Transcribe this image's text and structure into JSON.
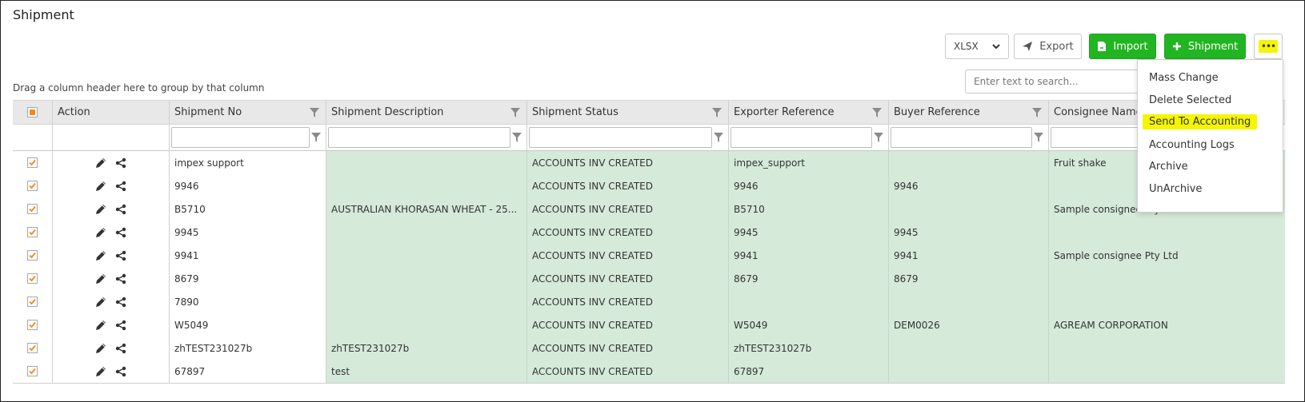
{
  "page_title": "Shipment",
  "toolbar": {
    "format_value": "XLSX",
    "export_label": "Export",
    "import_label": "Import",
    "shipment_label": "Shipment",
    "more_label": "•••"
  },
  "group_hint": "Drag a column header here to group by that column",
  "search": {
    "placeholder": "Enter text to search..."
  },
  "columns": [
    "Action",
    "Shipment No",
    "Shipment Description",
    "Shipment Status",
    "Exporter Reference",
    "Buyer Reference",
    "Consignee Name"
  ],
  "rows": [
    {
      "shipment_no": "impex support",
      "description": "",
      "status": "ACCOUNTS INV CREATED",
      "exporter_ref": "impex_support",
      "buyer_ref": "",
      "consignee": "Fruit shake"
    },
    {
      "shipment_no": "9946",
      "description": "",
      "status": "ACCOUNTS INV CREATED",
      "exporter_ref": "9946",
      "buyer_ref": "9946",
      "consignee": ""
    },
    {
      "shipment_no": "B5710",
      "description": "AUSTRALIAN KHORASAN WHEAT - 25...",
      "status": "ACCOUNTS INV CREATED",
      "exporter_ref": "B5710",
      "buyer_ref": "",
      "consignee": "Sample consignee Pty Ltd"
    },
    {
      "shipment_no": "9945",
      "description": "",
      "status": "ACCOUNTS INV CREATED",
      "exporter_ref": "9945",
      "buyer_ref": "9945",
      "consignee": ""
    },
    {
      "shipment_no": "9941",
      "description": "",
      "status": "ACCOUNTS INV CREATED",
      "exporter_ref": "9941",
      "buyer_ref": "9941",
      "consignee": "Sample consignee Pty Ltd"
    },
    {
      "shipment_no": "8679",
      "description": "",
      "status": "ACCOUNTS INV CREATED",
      "exporter_ref": "8679",
      "buyer_ref": "8679",
      "consignee": ""
    },
    {
      "shipment_no": "7890",
      "description": "",
      "status": "ACCOUNTS INV CREATED",
      "exporter_ref": "",
      "buyer_ref": "",
      "consignee": ""
    },
    {
      "shipment_no": "W5049",
      "description": "",
      "status": "ACCOUNTS INV CREATED",
      "exporter_ref": "W5049",
      "buyer_ref": "DEM0026",
      "consignee": "AGREAM CORPORATION"
    },
    {
      "shipment_no": "zhTEST231027b",
      "description": "zhTEST231027b",
      "status": "ACCOUNTS INV CREATED",
      "exporter_ref": "zhTEST231027b",
      "buyer_ref": "",
      "consignee": ""
    },
    {
      "shipment_no": "67897",
      "description": "test",
      "status": "ACCOUNTS INV CREATED",
      "exporter_ref": "67897",
      "buyer_ref": "",
      "consignee": ""
    }
  ],
  "menu_items": [
    "Mass Change",
    "Delete Selected",
    "Send To Accounting",
    "Accounting Logs",
    "Archive",
    "UnArchive"
  ],
  "colors": {
    "primary_green": "#22b522",
    "row_green": "#d5ead9",
    "checkbox_orange": "#f08a1c",
    "highlight_yellow": "#f5f500"
  }
}
